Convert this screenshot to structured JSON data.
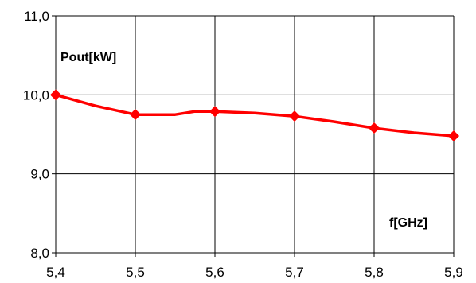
{
  "chart_data": {
    "type": "line",
    "title": "",
    "ylabel": "Pout[kW]",
    "xlabel": "f[GHz]",
    "xlim": [
      5.4,
      5.9
    ],
    "ylim": [
      8.0,
      11.0
    ],
    "x_ticks": [
      "5,4",
      "5,5",
      "5,6",
      "5,7",
      "5,8",
      "5,9"
    ],
    "y_ticks": [
      "8,0",
      "9,0",
      "10,0",
      "11,0"
    ],
    "grid": true,
    "color": "#ff0000",
    "marker": "diamond",
    "line_points": [
      [
        5.4,
        10.0
      ],
      [
        5.45,
        9.86
      ],
      [
        5.5,
        9.75
      ],
      [
        5.55,
        9.75
      ],
      [
        5.575,
        9.79
      ],
      [
        5.6,
        9.79
      ],
      [
        5.65,
        9.77
      ],
      [
        5.7,
        9.73
      ],
      [
        5.75,
        9.66
      ],
      [
        5.8,
        9.58
      ],
      [
        5.85,
        9.52
      ],
      [
        5.9,
        9.48
      ]
    ],
    "series": [
      {
        "x": [
          5.4,
          5.5,
          5.6,
          5.7,
          5.8,
          5.9
        ],
        "values": [
          10.0,
          9.75,
          9.79,
          9.73,
          9.58,
          9.48
        ]
      }
    ]
  }
}
